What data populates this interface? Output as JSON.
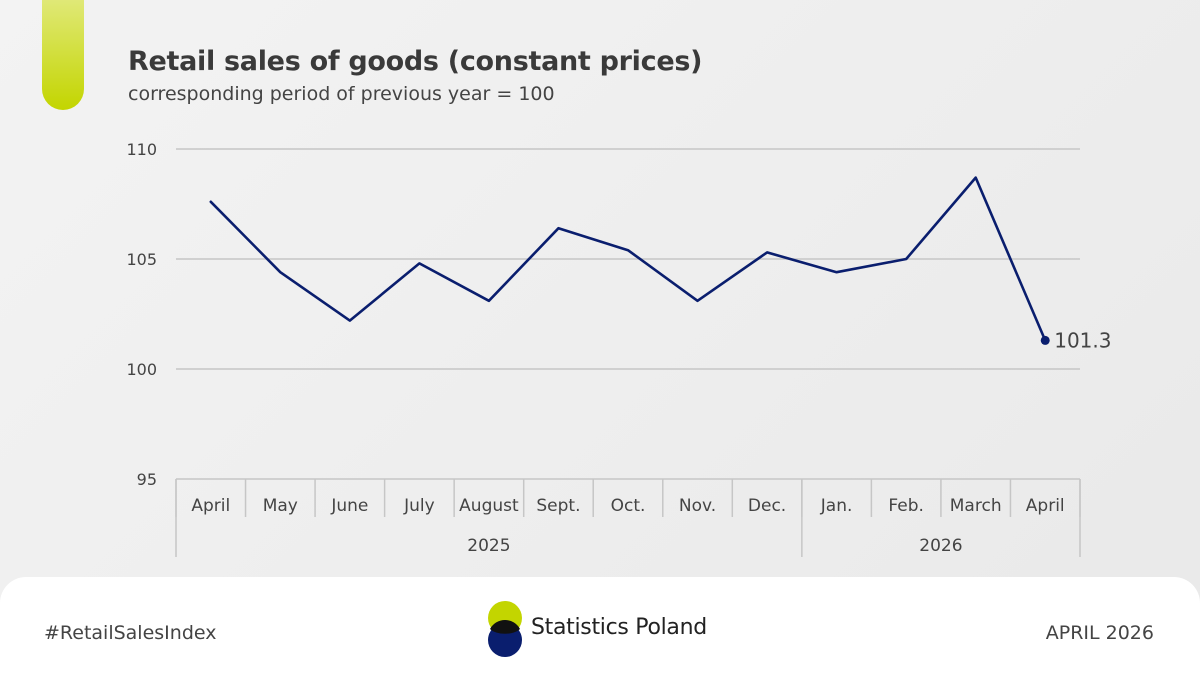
{
  "header": {
    "title": "Retail sales of goods (constant prices)",
    "subtitle": "corresponding period of previous year = 100"
  },
  "chart_data": {
    "type": "line",
    "categories": [
      "April",
      "May",
      "June",
      "July",
      "August",
      "Sept.",
      "Oct.",
      "Nov.",
      "Dec.",
      "Jan.",
      "Feb.",
      "March",
      "April"
    ],
    "groups": [
      {
        "label": "2025",
        "start": 0,
        "end": 8
      },
      {
        "label": "2026",
        "start": 9,
        "end": 12
      }
    ],
    "series": [
      {
        "values": [
          107.6,
          104.4,
          102.2,
          104.8,
          103.1,
          106.4,
          105.4,
          103.1,
          105.3,
          104.4,
          105.0,
          108.7,
          101.3
        ]
      }
    ],
    "last_label": "101.3",
    "ylim": [
      95,
      110
    ],
    "yticks": [
      95,
      100,
      105,
      110
    ],
    "grid": true,
    "colors": {
      "line": "#0a1e6e",
      "grid": "#c6c6c6"
    }
  },
  "footer": {
    "hashtag": "#RetailSalesIndex",
    "brand": "Statistics Poland",
    "date": "APRIL 2026"
  }
}
